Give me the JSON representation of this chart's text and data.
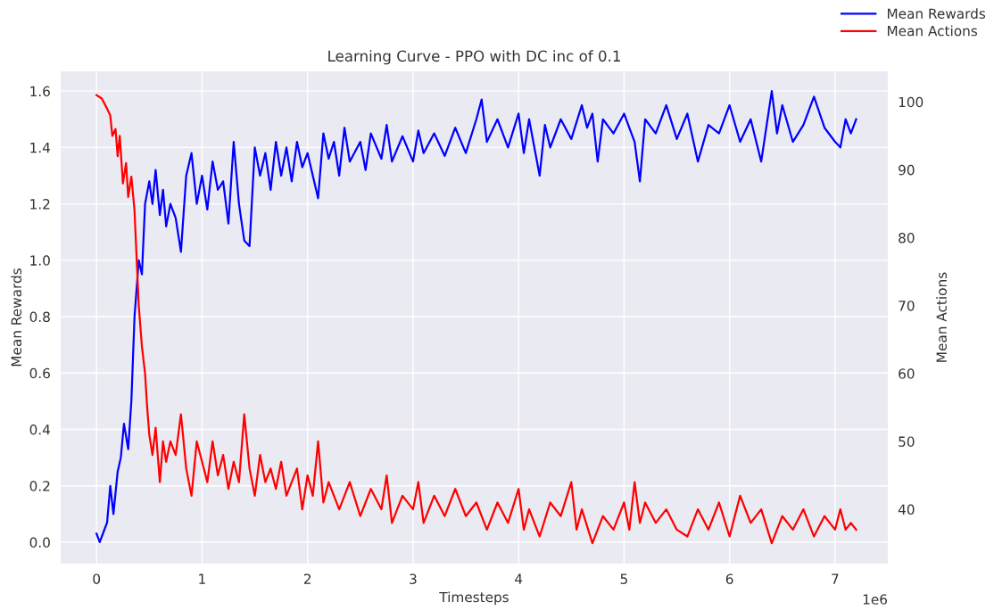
{
  "chart_data": {
    "type": "line",
    "title": "Learning Curve - PPO with DC inc of 0.1",
    "xlabel": "Timesteps",
    "ylabel": "Mean Rewards",
    "y2label": "Mean Actions",
    "annotations": [
      "1e6"
    ],
    "xlim": [
      -0.34,
      7.5
    ],
    "xticks": [
      0,
      1,
      2,
      3,
      4,
      5,
      6,
      7
    ],
    "ylim": [
      -0.076,
      1.67
    ],
    "yticks": [
      {
        "value": 0,
        "label": "0.0"
      },
      {
        "value": 0.2,
        "label": "0.2"
      },
      {
        "value": 0.4,
        "label": "0.4"
      },
      {
        "value": 0.6,
        "label": "0.6"
      },
      {
        "value": 0.8,
        "label": "0.8"
      },
      {
        "value": 1.0,
        "label": "1.0"
      },
      {
        "value": 1.2,
        "label": "1.2"
      },
      {
        "value": 1.4,
        "label": "1.4"
      },
      {
        "value": 1.6,
        "label": "1.6"
      }
    ],
    "y2lim": [
      32.0,
      104.5
    ],
    "y2ticks": [
      40,
      50,
      60,
      70,
      80,
      90,
      100
    ],
    "grid": true,
    "legend": "top right",
    "line_style": "solid",
    "marker": "none",
    "series": [
      {
        "name": "Mean Rewards",
        "color": "#0000ff",
        "x": [
          0,
          0.03,
          0.06,
          0.1,
          0.13,
          0.16,
          0.2,
          0.23,
          0.26,
          0.3,
          0.33,
          0.36,
          0.4,
          0.43,
          0.46,
          0.5,
          0.53,
          0.56,
          0.6,
          0.63,
          0.66,
          0.7,
          0.75,
          0.8,
          0.85,
          0.9,
          0.95,
          1.0,
          1.05,
          1.1,
          1.15,
          1.2,
          1.25,
          1.3,
          1.35,
          1.4,
          1.45,
          1.5,
          1.55,
          1.6,
          1.65,
          1.7,
          1.75,
          1.8,
          1.85,
          1.9,
          1.95,
          2.0,
          2.05,
          2.1,
          2.15,
          2.2,
          2.25,
          2.3,
          2.35,
          2.4,
          2.5,
          2.55,
          2.6,
          2.7,
          2.75,
          2.8,
          2.9,
          3.0,
          3.05,
          3.1,
          3.2,
          3.3,
          3.4,
          3.5,
          3.6,
          3.65,
          3.7,
          3.8,
          3.9,
          4.0,
          4.05,
          4.1,
          4.2,
          4.25,
          4.3,
          4.4,
          4.5,
          4.6,
          4.65,
          4.7,
          4.75,
          4.8,
          4.9,
          5.0,
          5.1,
          5.15,
          5.2,
          5.3,
          5.4,
          5.5,
          5.6,
          5.7,
          5.8,
          5.9,
          6.0,
          6.1,
          6.2,
          6.3,
          6.4,
          6.45,
          6.5,
          6.6,
          6.7,
          6.8,
          6.9,
          7.0,
          7.05,
          7.1,
          7.15,
          7.2
        ],
        "values": [
          0.03,
          0.0,
          0.03,
          0.07,
          0.2,
          0.1,
          0.25,
          0.3,
          0.42,
          0.33,
          0.5,
          0.8,
          1.0,
          0.95,
          1.2,
          1.28,
          1.2,
          1.32,
          1.16,
          1.25,
          1.12,
          1.2,
          1.15,
          1.03,
          1.3,
          1.38,
          1.2,
          1.3,
          1.18,
          1.35,
          1.25,
          1.28,
          1.13,
          1.42,
          1.2,
          1.07,
          1.05,
          1.4,
          1.3,
          1.38,
          1.25,
          1.42,
          1.3,
          1.4,
          1.28,
          1.42,
          1.33,
          1.38,
          1.3,
          1.22,
          1.45,
          1.36,
          1.42,
          1.3,
          1.47,
          1.35,
          1.42,
          1.32,
          1.45,
          1.36,
          1.48,
          1.35,
          1.44,
          1.35,
          1.46,
          1.38,
          1.45,
          1.37,
          1.47,
          1.38,
          1.5,
          1.57,
          1.42,
          1.5,
          1.4,
          1.52,
          1.38,
          1.5,
          1.3,
          1.48,
          1.4,
          1.5,
          1.43,
          1.55,
          1.47,
          1.52,
          1.35,
          1.5,
          1.45,
          1.52,
          1.42,
          1.28,
          1.5,
          1.45,
          1.55,
          1.43,
          1.52,
          1.35,
          1.48,
          1.45,
          1.55,
          1.42,
          1.5,
          1.35,
          1.6,
          1.45,
          1.55,
          1.42,
          1.48,
          1.58,
          1.47,
          1.42,
          1.4,
          1.5,
          1.45,
          1.5
        ]
      },
      {
        "name": "Mean Actions",
        "color": "#ff0000",
        "axis": "y2",
        "x": [
          0,
          0.05,
          0.1,
          0.13,
          0.15,
          0.18,
          0.2,
          0.22,
          0.25,
          0.28,
          0.3,
          0.33,
          0.36,
          0.4,
          0.43,
          0.46,
          0.48,
          0.5,
          0.53,
          0.56,
          0.6,
          0.63,
          0.66,
          0.7,
          0.75,
          0.8,
          0.85,
          0.9,
          0.95,
          1.0,
          1.05,
          1.1,
          1.15,
          1.2,
          1.25,
          1.3,
          1.35,
          1.4,
          1.45,
          1.5,
          1.55,
          1.6,
          1.65,
          1.7,
          1.75,
          1.8,
          1.9,
          1.95,
          2.0,
          2.05,
          2.1,
          2.15,
          2.2,
          2.3,
          2.4,
          2.5,
          2.6,
          2.7,
          2.75,
          2.8,
          2.9,
          3.0,
          3.05,
          3.1,
          3.2,
          3.3,
          3.4,
          3.5,
          3.6,
          3.7,
          3.8,
          3.9,
          4.0,
          4.05,
          4.1,
          4.2,
          4.3,
          4.4,
          4.5,
          4.55,
          4.6,
          4.7,
          4.8,
          4.9,
          5.0,
          5.05,
          5.1,
          5.15,
          5.2,
          5.3,
          5.4,
          5.5,
          5.6,
          5.7,
          5.8,
          5.9,
          6.0,
          6.1,
          6.2,
          6.3,
          6.4,
          6.5,
          6.6,
          6.7,
          6.8,
          6.9,
          7.0,
          7.05,
          7.1,
          7.15,
          7.2
        ],
        "values": [
          101,
          100.5,
          99,
          98,
          95,
          96,
          92,
          95,
          88,
          91,
          86,
          89,
          84,
          70,
          64,
          60,
          55,
          51,
          48,
          52,
          44,
          50,
          47,
          50,
          48,
          54,
          46,
          42,
          50,
          47,
          44,
          50,
          45,
          48,
          43,
          47,
          44,
          54,
          46,
          42,
          48,
          44,
          46,
          43,
          47,
          42,
          46,
          40,
          45,
          42,
          50,
          41,
          44,
          40,
          44,
          39,
          43,
          40,
          45,
          38,
          42,
          40,
          44,
          38,
          42,
          39,
          43,
          39,
          41,
          37,
          41,
          38,
          43,
          37,
          40,
          36,
          41,
          39,
          44,
          37,
          40,
          35,
          39,
          37,
          41,
          37,
          44,
          38,
          41,
          38,
          40,
          37,
          36,
          40,
          37,
          41,
          36,
          42,
          38,
          40,
          35,
          39,
          37,
          40,
          36,
          39,
          37,
          40,
          37,
          38,
          37
        ]
      }
    ]
  }
}
